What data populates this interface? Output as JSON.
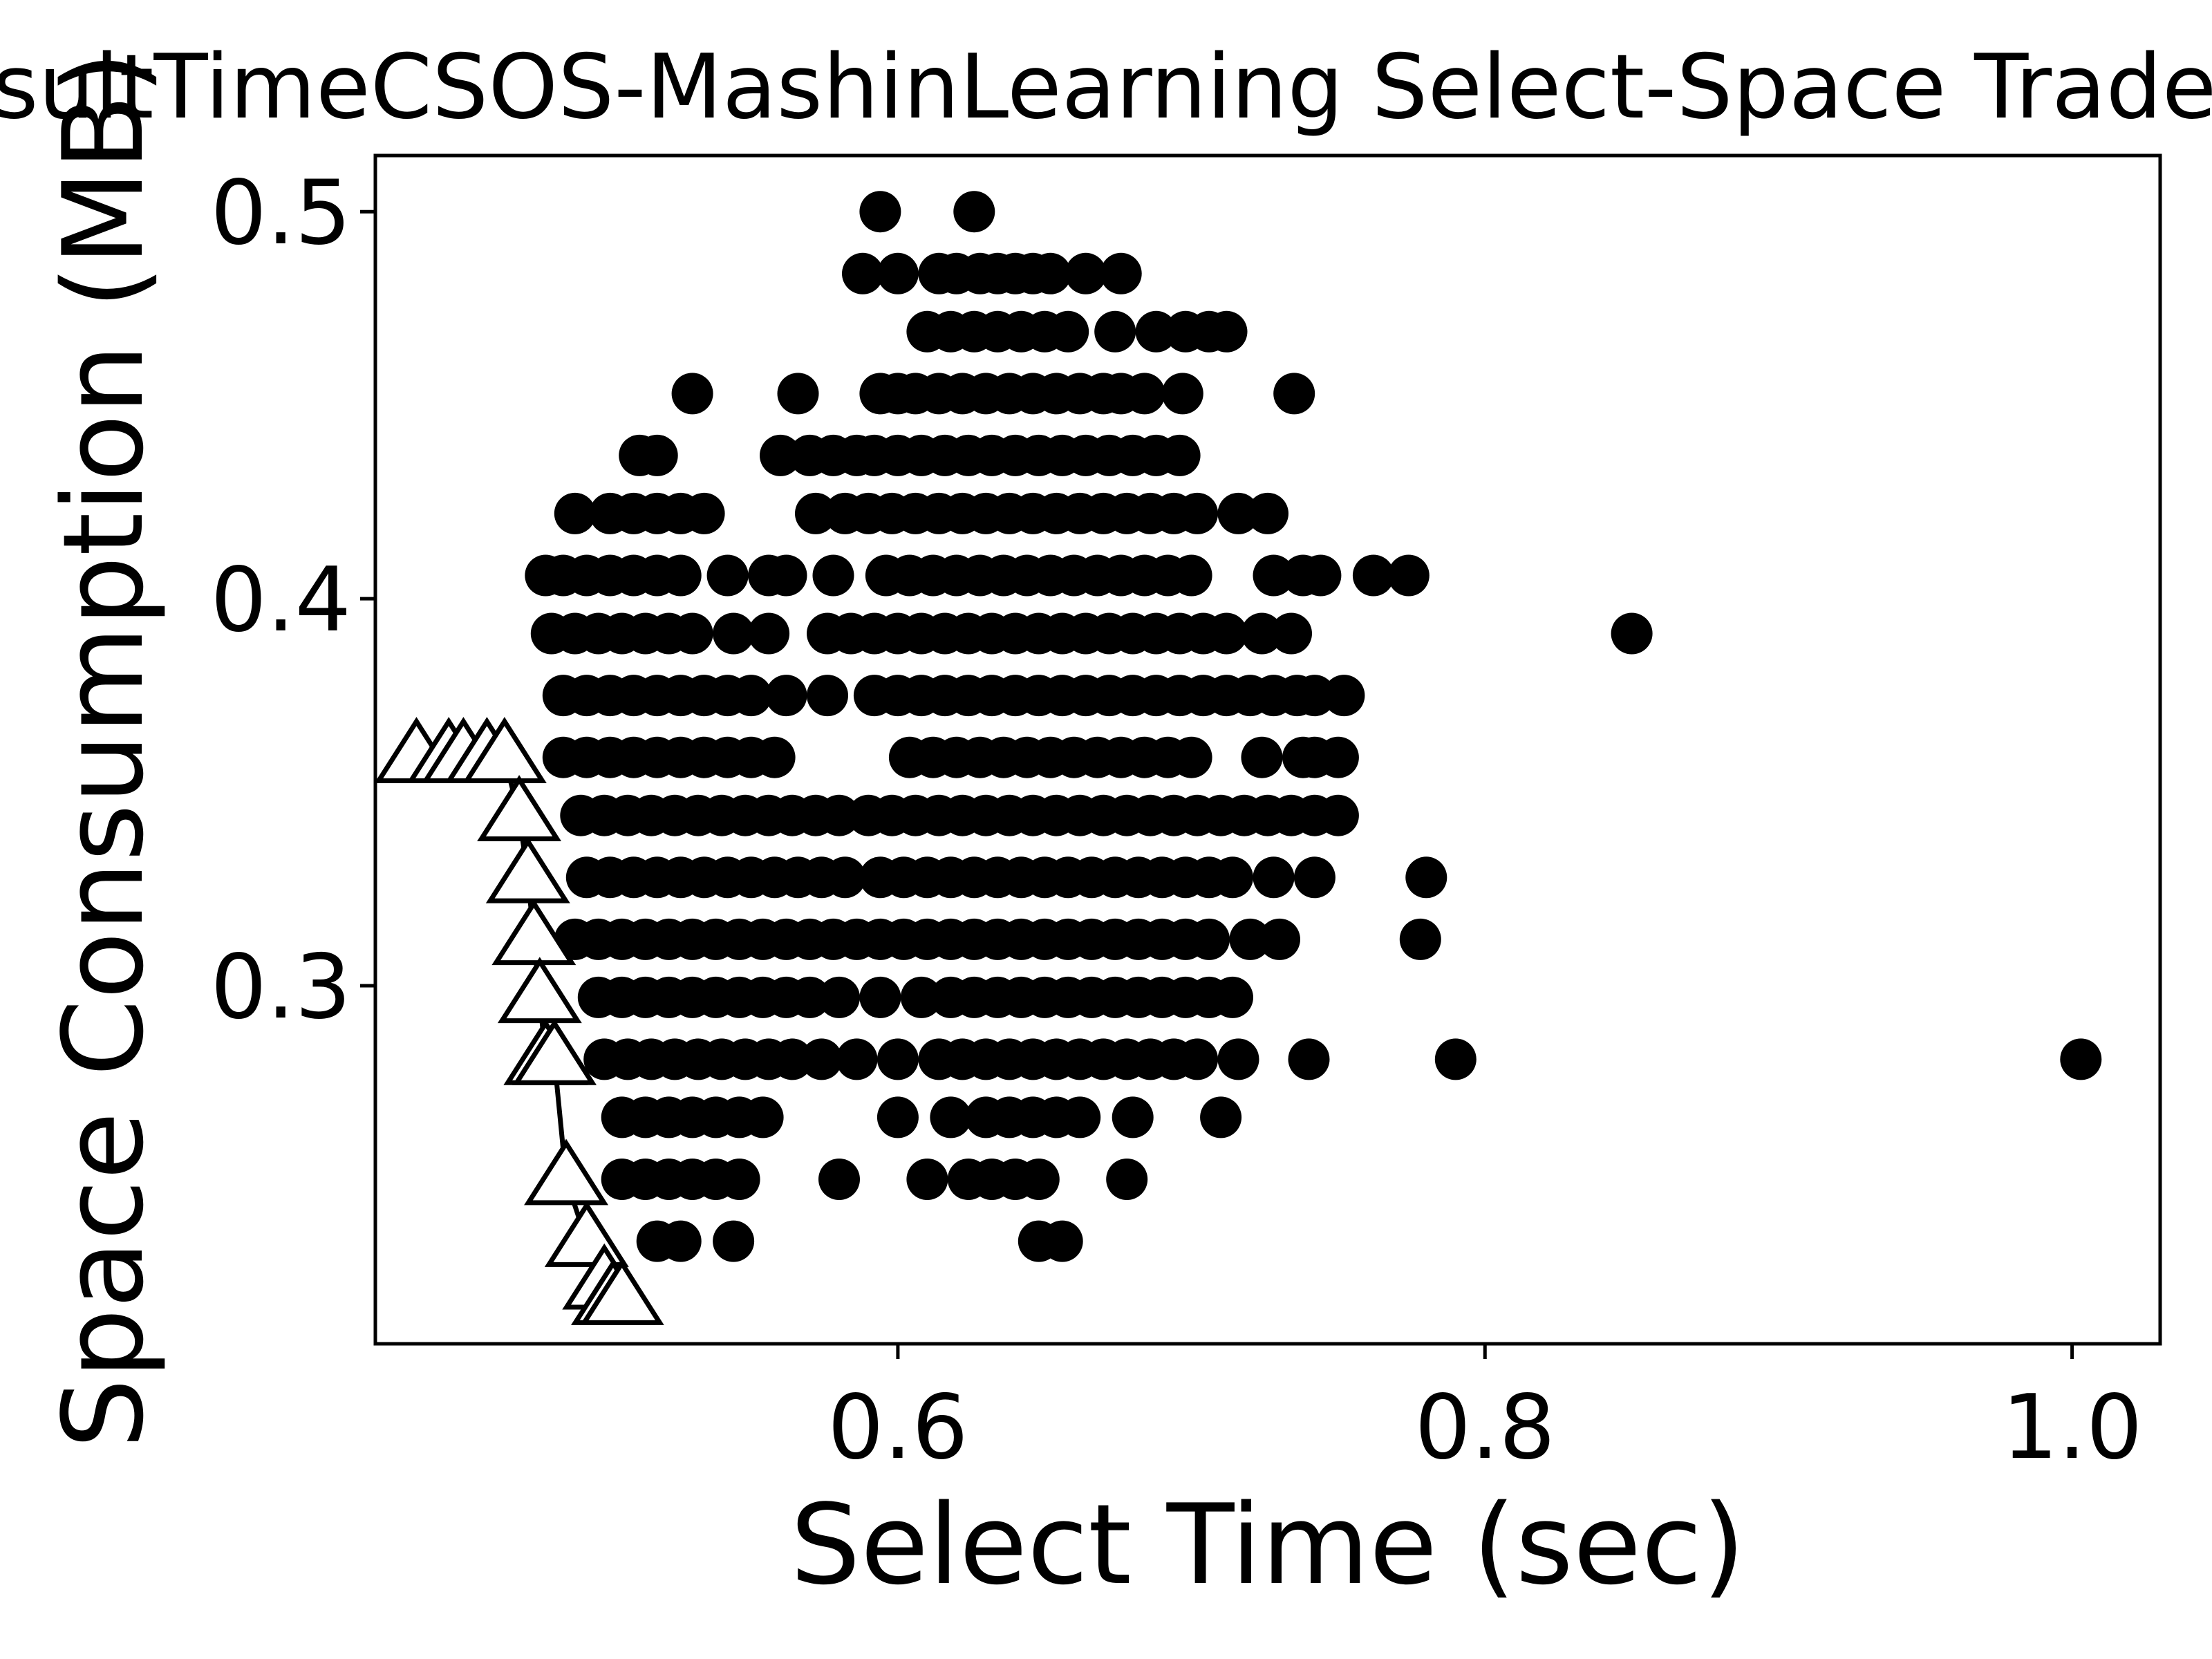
{
  "chart_data": {
    "type": "scatter",
    "title": "ResultTimeCSOS-MashinLearning Select-Space Tradeoff",
    "xlabel": "Select Time (sec)",
    "ylabel": "Space Consumption (MB)",
    "xlim": [
      0.422,
      1.03
    ],
    "ylim": [
      0.2075,
      0.5145
    ],
    "xticks": [
      0.6,
      0.8,
      1.0
    ],
    "xtick_labels": [
      "0.6",
      "0.8",
      "1.0"
    ],
    "yticks": [
      0.3,
      0.4,
      0.5
    ],
    "ytick_labels": [
      "0.3",
      "0.4",
      "0.5"
    ],
    "grid": false,
    "legend": "none",
    "series": [
      {
        "marker": "filled-circle",
        "color": "#000000",
        "row_points": [
          {
            "y": 0.5,
            "x": [
              0.594,
              0.626
            ]
          },
          {
            "y": 0.484,
            "x": [
              0.588,
              0.6,
              0.614,
              0.62,
              0.628,
              0.634,
              0.64,
              0.646,
              0.652,
              0.664,
              0.676
            ]
          },
          {
            "y": 0.469,
            "x": [
              0.61,
              0.618,
              0.626,
              0.634,
              0.642,
              0.65,
              0.658,
              0.674,
              0.688,
              0.698,
              0.706,
              0.712
            ]
          },
          {
            "y": 0.453,
            "x": [
              0.53,
              0.566,
              0.594,
              0.6,
              0.606,
              0.614,
              0.622,
              0.63,
              0.638,
              0.646,
              0.654,
              0.662,
              0.67,
              0.676,
              0.684,
              0.697,
              0.735
            ]
          },
          {
            "y": 0.437,
            "x": [
              0.512,
              0.518,
              0.56,
              0.57,
              0.578,
              0.586,
              0.592,
              0.6,
              0.608,
              0.616,
              0.624,
              0.632,
              0.64,
              0.648,
              0.656,
              0.664,
              0.672,
              0.68,
              0.688,
              0.696
            ]
          },
          {
            "y": 0.422,
            "x": [
              0.49,
              0.502,
              0.51,
              0.518,
              0.526,
              0.534,
              0.572,
              0.582,
              0.59,
              0.598,
              0.606,
              0.614,
              0.622,
              0.63,
              0.638,
              0.646,
              0.654,
              0.662,
              0.67,
              0.678,
              0.686,
              0.694,
              0.702,
              0.716,
              0.726
            ]
          },
          {
            "y": 0.406,
            "x": [
              0.48,
              0.486,
              0.494,
              0.502,
              0.51,
              0.518,
              0.526,
              0.542,
              0.556,
              0.562,
              0.578,
              0.596,
              0.604,
              0.612,
              0.62,
              0.628,
              0.636,
              0.644,
              0.652,
              0.66,
              0.668,
              0.676,
              0.684,
              0.692,
              0.7,
              0.728,
              0.738,
              0.744,
              0.762,
              0.774
            ]
          },
          {
            "y": 0.391,
            "x": [
              0.482,
              0.49,
              0.498,
              0.506,
              0.514,
              0.522,
              0.53,
              0.544,
              0.556,
              0.576,
              0.584,
              0.592,
              0.6,
              0.608,
              0.616,
              0.624,
              0.632,
              0.64,
              0.648,
              0.656,
              0.664,
              0.672,
              0.68,
              0.688,
              0.696,
              0.704,
              0.712,
              0.724,
              0.734,
              0.85
            ]
          },
          {
            "y": 0.375,
            "x": [
              0.486,
              0.494,
              0.502,
              0.51,
              0.518,
              0.526,
              0.534,
              0.542,
              0.55,
              0.562,
              0.576,
              0.592,
              0.6,
              0.608,
              0.616,
              0.624,
              0.632,
              0.64,
              0.648,
              0.656,
              0.664,
              0.672,
              0.68,
              0.688,
              0.696,
              0.704,
              0.712,
              0.72,
              0.728,
              0.736,
              0.742,
              0.752
            ]
          },
          {
            "y": 0.359,
            "x": [
              0.486,
              0.494,
              0.502,
              0.51,
              0.518,
              0.526,
              0.534,
              0.542,
              0.55,
              0.558,
              0.604,
              0.612,
              0.62,
              0.628,
              0.636,
              0.644,
              0.652,
              0.66,
              0.668,
              0.676,
              0.684,
              0.692,
              0.7,
              0.724,
              0.738,
              0.742,
              0.75
            ]
          },
          {
            "y": 0.344,
            "x": [
              0.492,
              0.5,
              0.508,
              0.516,
              0.524,
              0.532,
              0.54,
              0.548,
              0.556,
              0.564,
              0.572,
              0.58,
              0.59,
              0.598,
              0.606,
              0.614,
              0.622,
              0.63,
              0.638,
              0.646,
              0.654,
              0.662,
              0.67,
              0.678,
              0.686,
              0.694,
              0.702,
              0.71,
              0.718,
              0.726,
              0.734,
              0.742,
              0.75
            ]
          },
          {
            "y": 0.328,
            "x": [
              0.494,
              0.502,
              0.51,
              0.518,
              0.526,
              0.534,
              0.542,
              0.55,
              0.558,
              0.566,
              0.574,
              0.582,
              0.594,
              0.602,
              0.61,
              0.618,
              0.626,
              0.634,
              0.642,
              0.65,
              0.658,
              0.666,
              0.674,
              0.682,
              0.69,
              0.698,
              0.706,
              0.714,
              0.728,
              0.742,
              0.78
            ]
          },
          {
            "y": 0.312,
            "x": [
              0.49,
              0.498,
              0.506,
              0.514,
              0.522,
              0.53,
              0.538,
              0.546,
              0.554,
              0.562,
              0.57,
              0.578,
              0.586,
              0.594,
              0.602,
              0.61,
              0.618,
              0.626,
              0.634,
              0.642,
              0.65,
              0.658,
              0.666,
              0.674,
              0.682,
              0.69,
              0.698,
              0.706,
              0.72,
              0.73,
              0.778
            ]
          },
          {
            "y": 0.297,
            "x": [
              0.498,
              0.506,
              0.514,
              0.522,
              0.53,
              0.538,
              0.546,
              0.554,
              0.562,
              0.57,
              0.58,
              0.594,
              0.608,
              0.618,
              0.626,
              0.634,
              0.642,
              0.65,
              0.658,
              0.666,
              0.674,
              0.682,
              0.69,
              0.698,
              0.706,
              0.714
            ]
          },
          {
            "y": 0.281,
            "x": [
              0.5,
              0.508,
              0.516,
              0.524,
              0.532,
              0.54,
              0.548,
              0.556,
              0.564,
              0.574,
              0.586,
              0.6,
              0.614,
              0.622,
              0.63,
              0.638,
              0.646,
              0.654,
              0.662,
              0.67,
              0.678,
              0.686,
              0.694,
              0.702,
              0.716,
              0.74,
              0.79,
              1.003
            ]
          },
          {
            "y": 0.266,
            "x": [
              0.506,
              0.514,
              0.522,
              0.53,
              0.538,
              0.546,
              0.554,
              0.6,
              0.618,
              0.63,
              0.638,
              0.646,
              0.654,
              0.662,
              0.68,
              0.71
            ]
          },
          {
            "y": 0.25,
            "x": [
              0.506,
              0.514,
              0.522,
              0.53,
              0.538,
              0.546,
              0.58,
              0.61,
              0.624,
              0.632,
              0.64,
              0.648,
              0.678
            ]
          },
          {
            "y": 0.234,
            "x": [
              0.518,
              0.526,
              0.544,
              0.648,
              0.656
            ]
          }
        ]
      },
      {
        "marker": "hollow-triangle",
        "color": "#000000",
        "line": true,
        "points": [
          {
            "x": 0.436,
            "y": 0.359
          },
          {
            "x": 0.447,
            "y": 0.359
          },
          {
            "x": 0.452,
            "y": 0.359
          },
          {
            "x": 0.46,
            "y": 0.359
          },
          {
            "x": 0.466,
            "y": 0.359
          },
          {
            "x": 0.471,
            "y": 0.344
          },
          {
            "x": 0.474,
            "y": 0.328
          },
          {
            "x": 0.476,
            "y": 0.312
          },
          {
            "x": 0.478,
            "y": 0.297
          },
          {
            "x": 0.48,
            "y": 0.281
          },
          {
            "x": 0.483,
            "y": 0.281
          },
          {
            "x": 0.487,
            "y": 0.25
          },
          {
            "x": 0.494,
            "y": 0.234
          },
          {
            "x": 0.5,
            "y": 0.223
          },
          {
            "x": 0.503,
            "y": 0.219
          },
          {
            "x": 0.506,
            "y": 0.219
          }
        ]
      }
    ]
  }
}
